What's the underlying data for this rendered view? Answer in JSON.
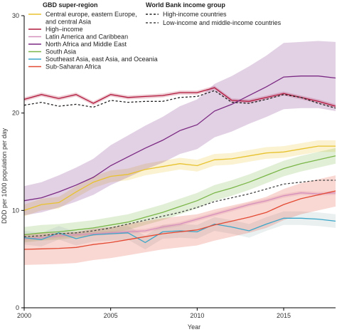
{
  "chart_data": {
    "type": "line",
    "xlabel": "Year",
    "ylabel": "DDD per 1000 population per day",
    "xlim": [
      2000,
      2018
    ],
    "ylim": [
      0,
      30
    ],
    "x_ticks": [
      "2000",
      "2005",
      "2010",
      "2015"
    ],
    "y_ticks": [
      "0",
      "10",
      "20",
      "30"
    ],
    "x": [
      2000,
      2001,
      2002,
      2003,
      2004,
      2005,
      2006,
      2007,
      2008,
      2009,
      2010,
      2011,
      2012,
      2013,
      2014,
      2015,
      2016,
      2017,
      2018
    ],
    "legend_left_title": "GBD super-region",
    "legend_right_title": "World Bank income group",
    "series": [
      {
        "name": "Central europe, eastern Europe, and central Asia",
        "legend_lines": [
          "Central europe, eastern Europe,",
          "and central Asia"
        ],
        "color": "#e8c22e",
        "style": "solid",
        "values": [
          10.0,
          10.6,
          10.8,
          11.9,
          12.9,
          13.5,
          13.7,
          14.2,
          14.5,
          14.8,
          14.6,
          15.2,
          15.3,
          15.6,
          15.9,
          16.0,
          16.3,
          16.6,
          16.6
        ],
        "band_lower": [
          9.4,
          10.0,
          10.2,
          11.3,
          12.3,
          12.9,
          13.1,
          13.6,
          13.9,
          14.2,
          14.0,
          14.6,
          14.7,
          15.0,
          15.3,
          15.4,
          15.7,
          16.0,
          16.0
        ],
        "band_upper": [
          10.6,
          11.2,
          11.4,
          12.5,
          13.5,
          14.1,
          14.3,
          14.8,
          15.1,
          15.4,
          15.2,
          15.8,
          15.9,
          16.2,
          16.5,
          16.6,
          16.9,
          17.2,
          17.2
        ]
      },
      {
        "name": "High–income",
        "legend_lines": [
          "High–income"
        ],
        "color": "#b2183c",
        "style": "solid",
        "values": [
          21.4,
          21.9,
          21.5,
          21.9,
          21.0,
          21.9,
          21.6,
          21.7,
          21.8,
          22.1,
          22.1,
          22.6,
          21.3,
          21.2,
          21.6,
          22.0,
          21.6,
          21.2,
          20.7
        ],
        "band_lower": [
          21.2,
          21.7,
          21.3,
          21.7,
          20.8,
          21.7,
          21.4,
          21.5,
          21.6,
          21.9,
          21.9,
          22.4,
          21.1,
          21.0,
          21.4,
          21.8,
          21.4,
          21.0,
          20.5
        ],
        "band_upper": [
          21.6,
          22.1,
          21.7,
          22.1,
          21.2,
          22.1,
          21.8,
          21.9,
          22.0,
          22.3,
          22.3,
          22.8,
          21.5,
          21.4,
          21.8,
          22.2,
          21.8,
          21.4,
          20.9
        ]
      },
      {
        "name": "Latin America and Caribbean",
        "legend_lines": [
          "Latin America and Caribbean"
        ],
        "color": "#d591bc",
        "style": "solid",
        "values": [
          7.1,
          7.2,
          7.4,
          7.5,
          7.6,
          7.7,
          7.8,
          7.9,
          8.3,
          8.6,
          9.1,
          9.6,
          10.1,
          10.6,
          11.0,
          11.5,
          11.8,
          11.7,
          11.8
        ],
        "band_lower": [
          6.9,
          7.0,
          7.2,
          7.3,
          7.4,
          7.5,
          7.6,
          7.7,
          8.1,
          8.4,
          8.9,
          9.4,
          9.9,
          10.4,
          10.8,
          11.3,
          11.6,
          11.5,
          11.6
        ],
        "band_upper": [
          7.3,
          7.4,
          7.6,
          7.7,
          7.8,
          7.9,
          8.0,
          8.1,
          8.5,
          8.8,
          9.3,
          9.8,
          10.3,
          10.8,
          11.2,
          11.7,
          12.0,
          11.9,
          12.0
        ]
      },
      {
        "name": "North Africa and Middle East",
        "legend_lines": [
          "North Africa and Middle East"
        ],
        "color": "#7b2a83",
        "style": "solid",
        "values": [
          11.0,
          11.3,
          11.9,
          12.6,
          13.4,
          14.6,
          15.5,
          16.4,
          17.2,
          18.2,
          18.8,
          20.2,
          20.9,
          21.8,
          22.7,
          23.7,
          23.8,
          23.8,
          23.6
        ],
        "band_lower": [
          9.5,
          9.8,
          10.3,
          10.9,
          11.6,
          12.6,
          13.4,
          14.2,
          14.9,
          15.8,
          16.3,
          17.5,
          18.1,
          18.9,
          19.6,
          20.4,
          20.5,
          20.5,
          20.2
        ],
        "band_upper": [
          12.5,
          12.9,
          13.6,
          14.4,
          15.3,
          16.7,
          17.7,
          18.7,
          19.6,
          20.7,
          21.4,
          23.0,
          23.8,
          24.8,
          25.9,
          27.2,
          27.3,
          27.4,
          27.3
        ]
      },
      {
        "name": "South Asia",
        "legend_lines": [
          "South Asia"
        ],
        "color": "#7ab648",
        "style": "solid",
        "values": [
          7.5,
          7.7,
          7.8,
          8.0,
          8.2,
          8.5,
          8.8,
          9.3,
          9.8,
          10.4,
          11.0,
          11.8,
          12.3,
          12.9,
          13.6,
          14.3,
          14.8,
          15.2,
          15.6
        ],
        "band_lower": [
          6.7,
          6.9,
          7.0,
          7.2,
          7.4,
          7.7,
          8.0,
          8.5,
          9.0,
          9.6,
          10.2,
          11.0,
          11.5,
          12.1,
          12.8,
          13.5,
          14.0,
          14.4,
          14.8
        ],
        "band_upper": [
          8.3,
          8.5,
          8.6,
          8.8,
          9.0,
          9.3,
          9.6,
          10.1,
          10.6,
          11.2,
          11.8,
          12.6,
          13.1,
          13.7,
          14.4,
          15.1,
          15.6,
          16.0,
          16.4
        ]
      },
      {
        "name": "Southeast Asia, east Asia, and Oceania",
        "legend_lines": [
          "Southeast Asia, east Asia, and Oceania"
        ],
        "color": "#3aa6c9",
        "style": "solid",
        "values": [
          7.2,
          7.0,
          7.7,
          7.1,
          7.5,
          7.6,
          7.7,
          6.7,
          7.8,
          7.9,
          7.8,
          8.6,
          8.3,
          7.9,
          8.6,
          9.2,
          9.2,
          9.1,
          8.9
        ],
        "band_lower": [
          6.5,
          6.3,
          7.0,
          6.4,
          6.8,
          6.9,
          7.0,
          6.0,
          7.1,
          7.2,
          7.1,
          7.9,
          7.6,
          7.2,
          7.9,
          8.5,
          8.5,
          8.4,
          8.2
        ],
        "band_upper": [
          7.9,
          7.7,
          8.4,
          7.8,
          8.2,
          8.3,
          8.4,
          7.4,
          8.5,
          8.6,
          8.5,
          9.3,
          9.0,
          8.6,
          9.3,
          9.9,
          9.9,
          9.8,
          9.6
        ],
        "band_color": "#9fb8ba"
      },
      {
        "name": "Sub-Saharan Africa",
        "legend_lines": [
          "Sub-Saharan Africa"
        ],
        "color": "#e34a33",
        "style": "solid",
        "values": [
          6.0,
          6.05,
          6.1,
          6.2,
          6.5,
          6.7,
          7.0,
          7.3,
          7.6,
          7.8,
          8.0,
          8.5,
          8.9,
          9.3,
          9.8,
          10.6,
          11.2,
          11.6,
          12.0
        ],
        "band_lower": [
          4.4,
          4.45,
          4.5,
          4.6,
          4.9,
          5.1,
          5.4,
          5.7,
          6.0,
          6.2,
          6.4,
          6.9,
          7.3,
          7.7,
          8.2,
          9.0,
          9.6,
          10.0,
          10.4
        ],
        "band_upper": [
          7.6,
          7.65,
          7.7,
          7.8,
          8.1,
          8.3,
          8.6,
          8.9,
          9.2,
          9.4,
          9.6,
          10.1,
          10.5,
          10.9,
          11.4,
          12.2,
          12.8,
          13.2,
          13.6
        ]
      },
      {
        "name": "High-income countries",
        "legend_lines": [
          "High-income countries"
        ],
        "color": "#222222",
        "style": "dashed",
        "legend_group": "income",
        "values": [
          20.8,
          21.1,
          20.7,
          20.9,
          20.6,
          21.3,
          21.1,
          21.2,
          21.2,
          21.6,
          21.7,
          22.3,
          21.1,
          21.0,
          21.4,
          21.9,
          21.6,
          21.0,
          20.5
        ]
      },
      {
        "name": "Low-income and middle-income countries",
        "legend_lines": [
          "Low-income and middle-income countries"
        ],
        "color": "#444444",
        "style": "dashed",
        "legend_group": "income",
        "values": [
          7.3,
          7.4,
          7.6,
          7.7,
          7.9,
          8.2,
          8.6,
          9.0,
          9.4,
          9.8,
          10.3,
          10.9,
          11.3,
          11.7,
          12.2,
          12.7,
          12.9,
          13.1,
          13.1
        ]
      }
    ]
  }
}
